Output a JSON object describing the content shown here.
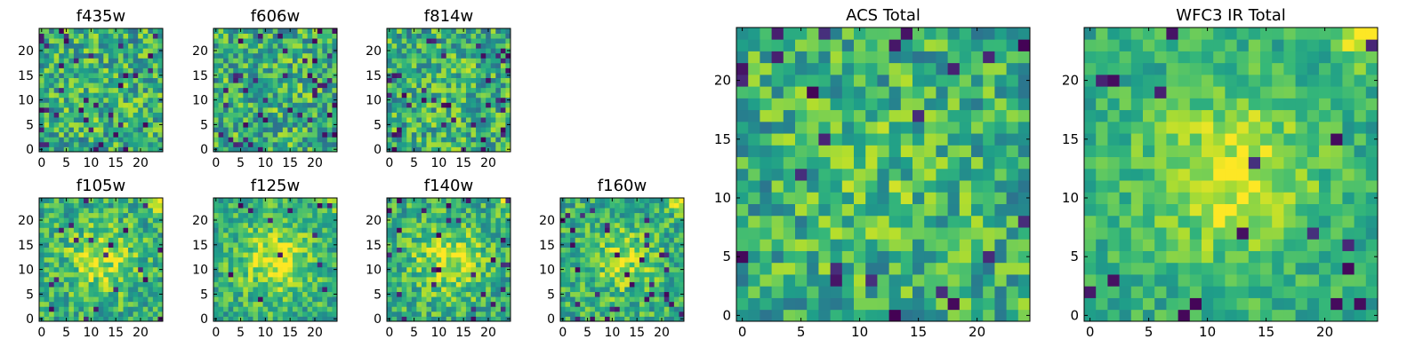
{
  "chart_data": [
    {
      "type": "heatmap",
      "title": "f435w",
      "size": 25,
      "seed": 11,
      "blob": 0.05,
      "noise": 1.0,
      "dark": 0.05,
      "corner": 0.0,
      "xticks": [
        0,
        5,
        10,
        15,
        20
      ],
      "yticks": [
        0,
        5,
        10,
        15,
        20
      ]
    },
    {
      "type": "heatmap",
      "title": "f606w",
      "size": 25,
      "seed": 23,
      "blob": 0.05,
      "noise": 1.0,
      "dark": 0.06,
      "corner": 0.0,
      "xticks": [
        0,
        5,
        10,
        15,
        20
      ],
      "yticks": [
        0,
        5,
        10,
        15,
        20
      ]
    },
    {
      "type": "heatmap",
      "title": "f814w",
      "size": 25,
      "seed": 37,
      "blob": 0.08,
      "noise": 1.0,
      "dark": 0.06,
      "corner": 0.0,
      "xticks": [
        0,
        5,
        10,
        15,
        20
      ],
      "yticks": [
        0,
        5,
        10,
        15,
        20
      ]
    },
    {
      "type": "heatmap",
      "title": "f105w",
      "size": 25,
      "seed": 41,
      "blob": 0.45,
      "noise": 0.8,
      "dark": 0.04,
      "corner": 0.6,
      "xticks": [
        0,
        5,
        10,
        15,
        20
      ],
      "yticks": [
        0,
        5,
        10,
        15,
        20
      ]
    },
    {
      "type": "heatmap",
      "title": "f125w",
      "size": 25,
      "seed": 53,
      "blob": 0.55,
      "noise": 0.75,
      "dark": 0.02,
      "corner": 0.5,
      "xticks": [
        0,
        5,
        10,
        15,
        20
      ],
      "yticks": [
        0,
        5,
        10,
        15,
        20
      ]
    },
    {
      "type": "heatmap",
      "title": "f140w",
      "size": 25,
      "seed": 67,
      "blob": 0.5,
      "noise": 0.8,
      "dark": 0.04,
      "corner": 0.6,
      "xticks": [
        0,
        5,
        10,
        15,
        20
      ],
      "yticks": [
        0,
        5,
        10,
        15,
        20
      ]
    },
    {
      "type": "heatmap",
      "title": "f160w",
      "size": 25,
      "seed": 79,
      "blob": 0.35,
      "noise": 0.8,
      "dark": 0.06,
      "corner": 0.8,
      "xticks": [
        0,
        5,
        10,
        15,
        20
      ],
      "yticks": [
        0,
        5,
        10,
        15,
        20
      ]
    },
    {
      "type": "heatmap",
      "title": "ACS Total",
      "size": 25,
      "seed": 97,
      "blob": 0.15,
      "noise": 0.9,
      "dark": 0.04,
      "corner": 0.0,
      "xticks": [
        0,
        5,
        10,
        15,
        20
      ],
      "yticks": [
        0,
        5,
        10,
        15,
        20
      ]
    },
    {
      "type": "heatmap",
      "title": "WFC3 IR Total",
      "size": 25,
      "seed": 113,
      "blob": 0.55,
      "noise": 0.55,
      "dark": 0.03,
      "corner": 1.0,
      "xticks": [
        0,
        5,
        10,
        15,
        20
      ],
      "yticks": [
        0,
        5,
        10,
        15,
        20
      ]
    }
  ],
  "colors": {
    "colormap": "viridis",
    "frame": "#000000",
    "background": "#ffffff"
  }
}
